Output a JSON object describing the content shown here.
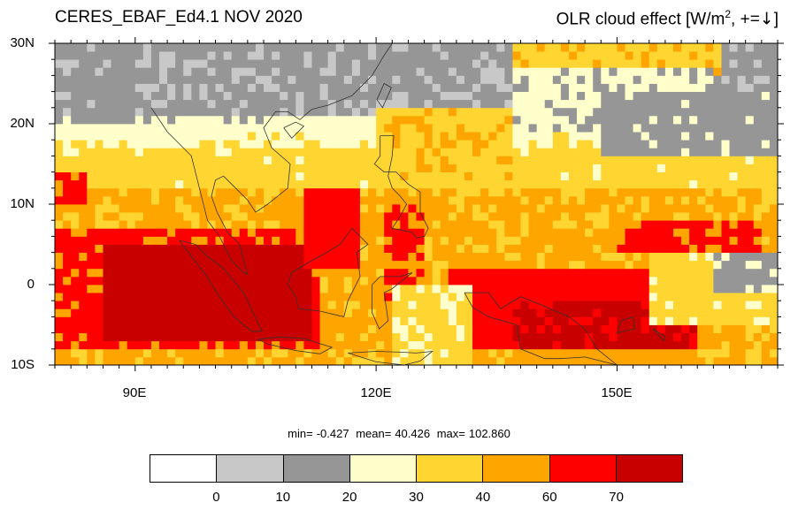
{
  "title_left": "CERES_EBAF_Ed4.1 NOV 2020",
  "title_right": {
    "main": "OLR cloud effect [W/m",
    "sup": "2",
    "tail": ", +=",
    "arrow": "↓",
    "end": "]"
  },
  "lat_labels": [
    "30N",
    "20N",
    "10N",
    "0",
    "10S"
  ],
  "lon_labels": [
    "90E",
    "120E",
    "150E"
  ],
  "stats": {
    "min_label": "min=",
    "min": "-0.427",
    "mean_label": "mean=",
    "mean": "40.426",
    "max_label": "max=",
    "max": "102.860"
  },
  "colorbar": {
    "colors": [
      "#ffffff",
      "#c8c8c8",
      "#969696",
      "#ffffcc",
      "#ffd531",
      "#ffa500",
      "#ff0000",
      "#c80000"
    ],
    "labels": [
      "0",
      "10",
      "20",
      "30",
      "40",
      "60",
      "70"
    ]
  },
  "map_extent": {
    "lon": [
      80,
      170
    ],
    "lat": [
      -10,
      30
    ]
  }
}
